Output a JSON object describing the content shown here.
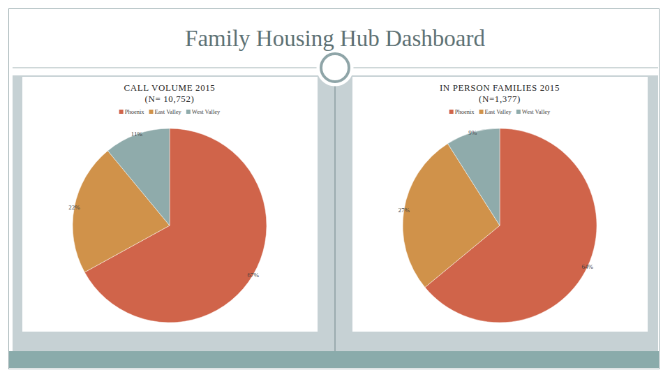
{
  "title": "Family Housing Hub Dashboard",
  "chart_data": [
    {
      "type": "pie",
      "title": "CALL VOLUME 2015",
      "subtitle": "(N= 10,752)",
      "categories": [
        "Phoenix",
        "East Valley",
        "West Valley"
      ],
      "values": [
        67,
        22,
        11
      ],
      "value_labels": [
        "67%",
        "22%",
        "11%"
      ],
      "colors": [
        "#d0644a",
        "#d0924a",
        "#8fabab"
      ],
      "data_labels": true,
      "legend": "top"
    },
    {
      "type": "pie",
      "title": "IN PERSON FAMILIES 2015",
      "subtitle": "(N=1,377)",
      "categories": [
        "Phoenix",
        "East Valley",
        "West Valley"
      ],
      "values": [
        64,
        27,
        9
      ],
      "value_labels": [
        "64%",
        "27%",
        "9%"
      ],
      "colors": [
        "#d0644a",
        "#d0924a",
        "#8fabab"
      ],
      "data_labels": true,
      "legend": "top"
    }
  ]
}
